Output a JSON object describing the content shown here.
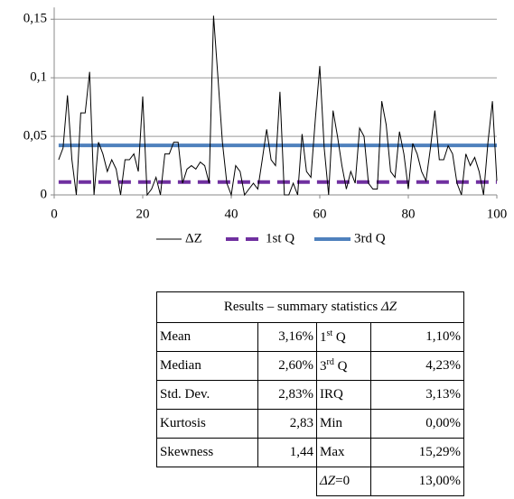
{
  "chart_data": {
    "type": "line",
    "x": [
      1,
      2,
      3,
      4,
      5,
      6,
      7,
      8,
      9,
      10,
      11,
      12,
      13,
      14,
      15,
      16,
      17,
      18,
      19,
      20,
      21,
      22,
      23,
      24,
      25,
      26,
      27,
      28,
      29,
      30,
      31,
      32,
      33,
      34,
      35,
      36,
      37,
      38,
      39,
      40,
      41,
      42,
      43,
      44,
      45,
      46,
      47,
      48,
      49,
      50,
      51,
      52,
      53,
      54,
      55,
      56,
      57,
      58,
      59,
      60,
      61,
      62,
      63,
      64,
      65,
      66,
      67,
      68,
      69,
      70,
      71,
      72,
      73,
      74,
      75,
      76,
      77,
      78,
      79,
      80,
      81,
      82,
      83,
      84,
      85,
      86,
      87,
      88,
      89,
      90,
      91,
      92,
      93,
      94,
      95,
      96,
      97,
      98,
      99,
      100
    ],
    "series": [
      {
        "name": "ΔZ",
        "color": "#000000",
        "values": [
          0.03,
          0.04,
          0.085,
          0.03,
          0,
          0.07,
          0.07,
          0.105,
          0,
          0.045,
          0.035,
          0.02,
          0.03,
          0.022,
          0,
          0.03,
          0.03,
          0.035,
          0.02,
          0.084,
          0,
          0.005,
          0.015,
          0,
          0.035,
          0.035,
          0.045,
          0.045,
          0.01,
          0.022,
          0.025,
          0.022,
          0.028,
          0.025,
          0.01,
          0.153,
          0.1,
          0.045,
          0.01,
          0,
          0.025,
          0.02,
          0,
          0.005,
          0.01,
          0.005,
          0.03,
          0.056,
          0.03,
          0.025,
          0.088,
          0,
          0,
          0.01,
          0,
          0.052,
          0.02,
          0.015,
          0.065,
          0.11,
          0.04,
          0,
          0.072,
          0.05,
          0.025,
          0.005,
          0.02,
          0.01,
          0.057,
          0.05,
          0.01,
          0.005,
          0.005,
          0.08,
          0.06,
          0.02,
          0.015,
          0.054,
          0.035,
          0.005,
          0.044,
          0.035,
          0.02,
          0.012,
          0.04,
          0.072,
          0.03,
          0.03,
          0.042,
          0.035,
          0.01,
          0,
          0.035,
          0.025,
          0.032,
          0.02,
          0,
          0.045,
          0.08,
          0.012
        ]
      },
      {
        "name": "1st Q",
        "color": "#7030a0",
        "dashed": true,
        "x": [
          1,
          100
        ],
        "values": [
          0.011,
          0.011
        ]
      },
      {
        "name": "3rd Q",
        "color": "#4f81bd",
        "x": [
          1,
          100
        ],
        "values": [
          0.0423,
          0.0423
        ]
      }
    ],
    "xlim": [
      0,
      100
    ],
    "xticks": [
      0,
      20,
      40,
      60,
      80,
      100
    ],
    "ylim": [
      0,
      0.16
    ],
    "yticks": [
      0,
      {
        "value": 0.05,
        "label": "0,05"
      },
      {
        "value": 0.1,
        "label": "0,1"
      },
      {
        "value": 0.15,
        "label": "0,15"
      }
    ],
    "grid": true,
    "legend": "bottom"
  },
  "table": {
    "title": "Results – summary statistics ",
    "title_symbol": "ΔZ",
    "rows": [
      [
        "Mean",
        "3,16%",
        {
          "base": "1",
          "sup": "st",
          "after": " Q"
        },
        "1,10%"
      ],
      [
        "Median",
        "2,60%",
        {
          "base": "3",
          "sup": "rd",
          "after": " Q"
        },
        "4,23%"
      ],
      [
        "Std. Dev.",
        "2,83%",
        {
          "base": "IRQ"
        },
        "3,13%"
      ],
      [
        "Kurtosis",
        "2,83",
        {
          "base": "Min"
        },
        "0,00%"
      ],
      [
        "Skewness",
        "1,44",
        {
          "base": "Max"
        },
        "15,29%"
      ]
    ],
    "last_row": {
      "symbol": "ΔZ",
      "after": "=0",
      "value": "13,00%"
    }
  }
}
